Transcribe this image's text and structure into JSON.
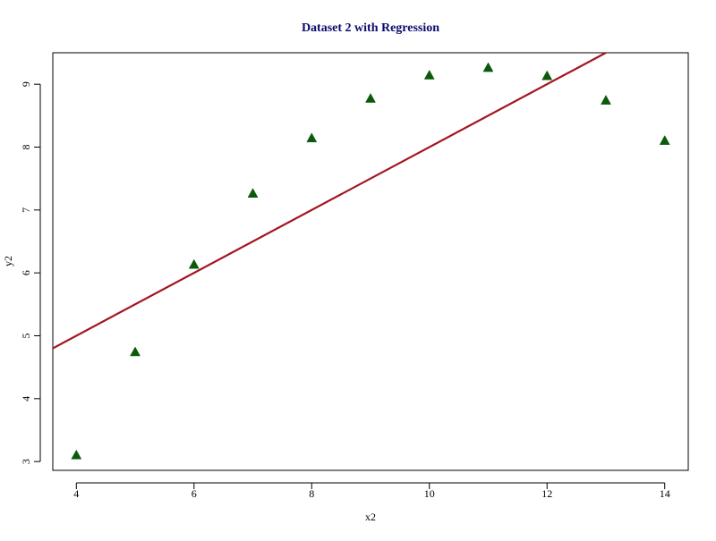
{
  "chart_data": {
    "type": "scatter",
    "title": "Dataset 2 with Regression",
    "xlabel": "x2",
    "ylabel": "y2",
    "xlim": [
      3.6,
      14.4
    ],
    "ylim": [
      2.86,
      9.5
    ],
    "x_ticks": [
      4,
      6,
      8,
      10,
      12,
      14
    ],
    "y_ticks": [
      3,
      4,
      5,
      6,
      7,
      8,
      9
    ],
    "grid": false,
    "series": [
      {
        "marker": "filled-triangle",
        "color": "#0b5a0b",
        "points": [
          {
            "x": 4,
            "y": 3.1
          },
          {
            "x": 5,
            "y": 4.74
          },
          {
            "x": 6,
            "y": 6.13
          },
          {
            "x": 7,
            "y": 7.26
          },
          {
            "x": 8,
            "y": 8.14
          },
          {
            "x": 9,
            "y": 8.77
          },
          {
            "x": 10,
            "y": 9.14
          },
          {
            "x": 11,
            "y": 9.26
          },
          {
            "x": 12,
            "y": 9.13
          },
          {
            "x": 13,
            "y": 8.74
          },
          {
            "x": 14,
            "y": 8.1
          }
        ]
      }
    ],
    "regression_line": {
      "intercept": 3.0,
      "slope": 0.5,
      "color": "#a31621"
    },
    "title_color": "#0a0a6e"
  }
}
